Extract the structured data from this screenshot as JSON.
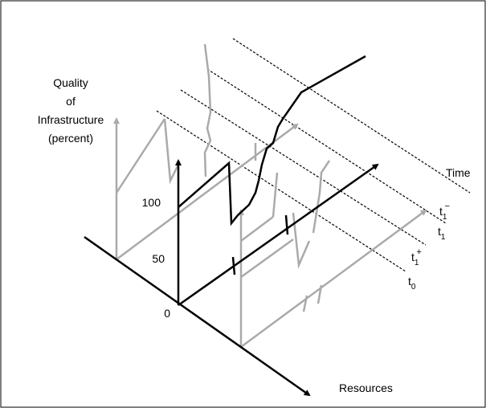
{
  "y_axis_label": [
    "Quality",
    "of",
    "Infrastructure",
    "(percent)"
  ],
  "y_ticks": [
    "100",
    "50",
    "0"
  ],
  "time_label": "Time",
  "time_slices": [
    {
      "base": "t",
      "sub": "1",
      "sup": "−"
    },
    {
      "base": "t",
      "sub": "1"
    },
    {
      "base": "t",
      "sub": "1",
      "sup": "+"
    },
    {
      "base": "t",
      "sub": "0"
    }
  ],
  "x_axis_label": "Resources"
}
